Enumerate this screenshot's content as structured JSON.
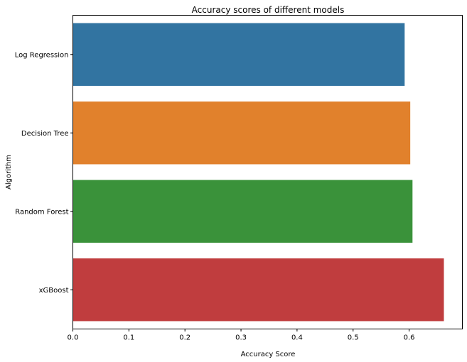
{
  "chart_data": {
    "type": "bar",
    "orientation": "horizontal",
    "title": "Accuracy scores of different models",
    "xlabel": "Accuracy Score",
    "ylabel": "Algorithm",
    "categories": [
      "Log Regression",
      "Decision Tree",
      "Random Forest",
      "xGBoost"
    ],
    "values": [
      0.592,
      0.602,
      0.606,
      0.662
    ],
    "colors": [
      "#3274a1",
      "#e1812c",
      "#3a923a",
      "#c03d3e"
    ],
    "xlim": [
      0,
      0.695
    ],
    "xticks": [
      "0.0",
      "0.1",
      "0.2",
      "0.3",
      "0.4",
      "0.5",
      "0.6"
    ],
    "grid": false,
    "legend": "none"
  }
}
